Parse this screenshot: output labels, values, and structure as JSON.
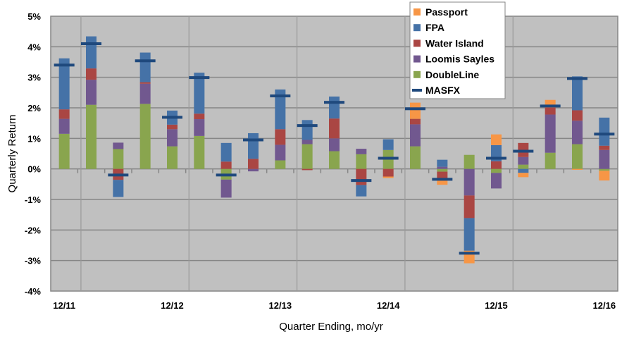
{
  "chart_data": {
    "type": "bar",
    "stacked": true,
    "title": "",
    "xlabel": "Quarter Ending, mo/yr",
    "ylabel": "Quarterly Return",
    "ylim": [
      -4,
      5
    ],
    "y_ticks": [
      "5%",
      "4%",
      "3%",
      "2%",
      "1%",
      "0%",
      "-1%",
      "-2%",
      "-3%",
      "-4%"
    ],
    "y_tick_values": [
      5,
      4,
      3,
      2,
      1,
      0,
      -1,
      -2,
      -3,
      -4
    ],
    "categories": [
      "12/11",
      "",
      "",
      "",
      "12/12",
      "",
      "",
      "",
      "12/13",
      "",
      "",
      "",
      "12/14",
      "",
      "",
      "",
      "12/15",
      "",
      "",
      "",
      "12/16"
    ],
    "grid": true,
    "legend_position": "top-right",
    "series": [
      {
        "name": "DoubleLine",
        "color": "#89A54E",
        "values": [
          1.15,
          2.1,
          0.65,
          2.13,
          0.74,
          1.08,
          -0.35,
          0,
          0.28,
          0.81,
          0.58,
          0.48,
          0.62,
          0.74,
          -0.09,
          0.46,
          -0.13,
          0.14,
          0.53,
          0.81,
          -0.06
        ]
      },
      {
        "name": "Loomis Sayles",
        "color": "#71588F",
        "values": [
          0.49,
          0.82,
          0.21,
          0.66,
          0.56,
          0.55,
          -0.59,
          -0.08,
          0.51,
          0.14,
          0.42,
          0.18,
          0,
          0.72,
          0.07,
          -0.87,
          -0.51,
          0.25,
          1.25,
          0.77,
          0.62
        ]
      },
      {
        "name": "Water Island",
        "color": "#AA4643",
        "values": [
          0.31,
          0.37,
          -0.36,
          0.05,
          0.15,
          0.18,
          0.24,
          0.33,
          0.51,
          -0.04,
          0.65,
          -0.53,
          -0.25,
          0.18,
          -0.25,
          -0.74,
          0.25,
          0.46,
          0.23,
          0.34,
          0.14
        ]
      },
      {
        "name": "FPA",
        "color": "#4572A7",
        "values": [
          1.67,
          1.05,
          -0.56,
          0.97,
          0.46,
          1.34,
          0.61,
          0.84,
          1.3,
          0.65,
          0.72,
          -0.37,
          0.35,
          0,
          0.23,
          -1.07,
          0.53,
          -0.13,
          0,
          1.11,
          0.92
        ]
      },
      {
        "name": "Passport",
        "color": "#F79646",
        "values": [
          0,
          0,
          0,
          0,
          0,
          0,
          0,
          0,
          0,
          0,
          0,
          0,
          -0.05,
          0.53,
          -0.18,
          -0.41,
          0.35,
          -0.14,
          0.25,
          -0.03,
          -0.32
        ]
      }
    ],
    "marker_series": {
      "name": "MASFX",
      "color": "#1F497D",
      "values": [
        3.4,
        4.1,
        -0.2,
        3.54,
        1.69,
        2.99,
        -0.2,
        0.95,
        2.39,
        1.42,
        2.18,
        -0.38,
        0.35,
        1.97,
        -0.34,
        -2.76,
        0.35,
        0.58,
        2.06,
        2.96,
        1.14
      ]
    },
    "legend_order": [
      "Passport",
      "FPA",
      "Water Island",
      "Loomis Sayles",
      "DoubleLine",
      "MASFX"
    ],
    "plot_background": "#C0C0C0"
  }
}
